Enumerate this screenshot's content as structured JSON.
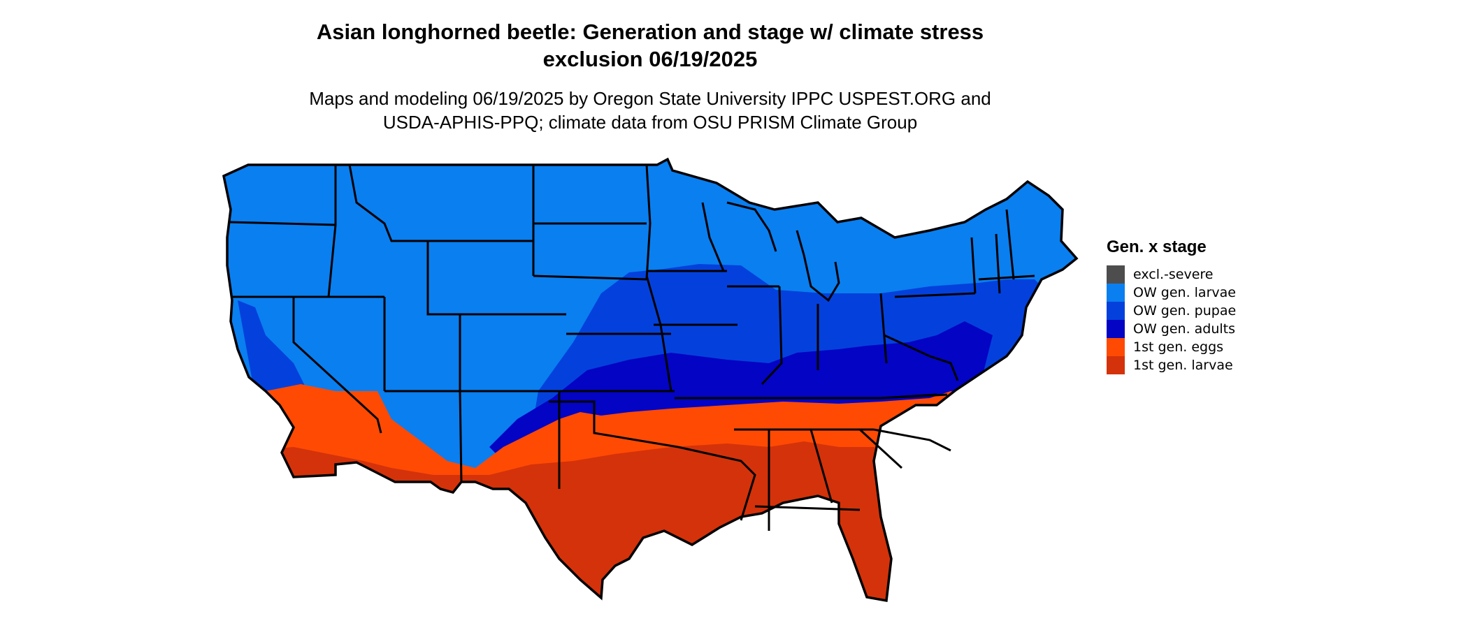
{
  "title_line1": "Asian longhorned beetle: Generation and stage w/ climate stress",
  "title_line2": "exclusion 06/19/2025",
  "subtitle_line1": "Maps and modeling 06/19/2025 by Oregon State University IPPC USPEST.ORG and",
  "subtitle_line2": "USDA-APHIS-PPQ; climate data from OSU PRISM Climate Group",
  "legend": {
    "title": "Gen. x stage",
    "items": [
      {
        "label": "excl.-severe",
        "color": "#4d4d4d"
      },
      {
        "label": "OW gen. larvae",
        "color": "#0a7ff0"
      },
      {
        "label": "OW gen. pupae",
        "color": "#0441dc"
      },
      {
        "label": "OW gen. adults",
        "color": "#0404c4"
      },
      {
        "label": "1st gen. eggs",
        "color": "#ff4a04"
      },
      {
        "label": "1st gen. larvae",
        "color": "#d4320a"
      }
    ]
  },
  "colors": {
    "background": "#ffffff",
    "state_border": "#000000"
  }
}
